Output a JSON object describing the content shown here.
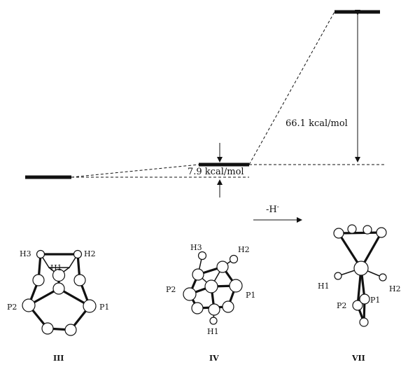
{
  "energies": {
    "e1": "7.9 kcal/mol",
    "e2": "66.1 kcal/mol"
  },
  "reaction": "-H",
  "reaction_sup": "-",
  "structures": {
    "III": {
      "label": "III",
      "atoms": {
        "h3": "H3",
        "h2": "H2",
        "h1": "H1",
        "p2": "P2",
        "p1": "P1"
      }
    },
    "IV": {
      "label": "IV",
      "atoms": {
        "h3": "H3",
        "h2": "H2",
        "h1": "H1",
        "p2": "P2",
        "p1": "P1"
      }
    },
    "VII": {
      "label": "VII",
      "atoms": {
        "h1": "H1",
        "h2": "H2",
        "p2": "P2",
        "p1": "P1"
      }
    }
  }
}
